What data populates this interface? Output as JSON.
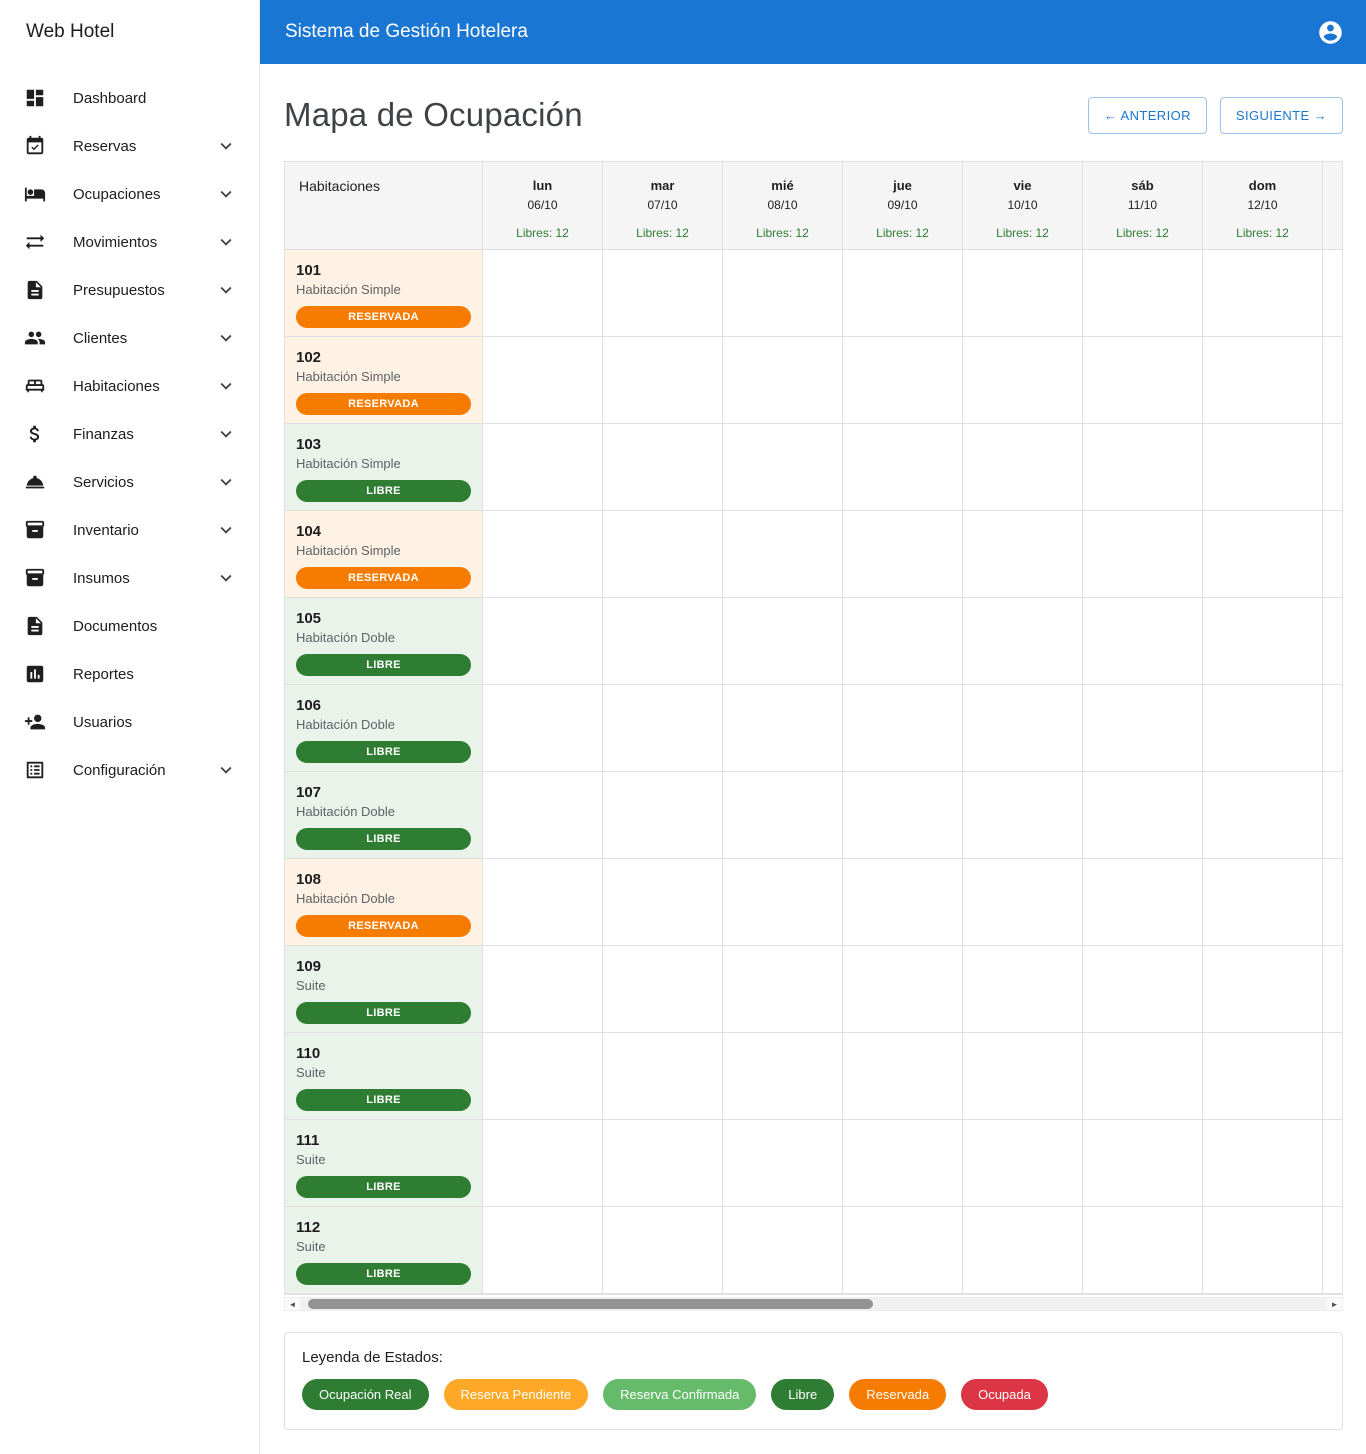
{
  "app": {
    "brand": "Web Hotel",
    "header_title": "Sistema de Gestión Hotelera",
    "accent_color": "#1976d2"
  },
  "sidebar": {
    "items": [
      {
        "label": "Dashboard",
        "icon": "dashboard",
        "expandable": false
      },
      {
        "label": "Reservas",
        "icon": "calendar-check",
        "expandable": true
      },
      {
        "label": "Ocupaciones",
        "icon": "bed",
        "expandable": true
      },
      {
        "label": "Movimientos",
        "icon": "swap-arrows",
        "expandable": true
      },
      {
        "label": "Presupuestos",
        "icon": "document",
        "expandable": true
      },
      {
        "label": "Clientes",
        "icon": "people",
        "expandable": true
      },
      {
        "label": "Habitaciones",
        "icon": "king-bed",
        "expandable": true
      },
      {
        "label": "Finanzas",
        "icon": "dollar",
        "expandable": true
      },
      {
        "label": "Servicios",
        "icon": "room-service",
        "expandable": true
      },
      {
        "label": "Inventario",
        "icon": "inventory",
        "expandable": true
      },
      {
        "label": "Insumos",
        "icon": "inventory",
        "expandable": true
      },
      {
        "label": "Documentos",
        "icon": "document",
        "expandable": false
      },
      {
        "label": "Reportes",
        "icon": "bar-chart",
        "expandable": false
      },
      {
        "label": "Usuarios",
        "icon": "person-add",
        "expandable": false
      },
      {
        "label": "Configuración",
        "icon": "list-alt",
        "expandable": true
      }
    ]
  },
  "main": {
    "title": "Mapa de Ocupación",
    "nav": {
      "prev": "← ANTERIOR",
      "next": "SIGUIENTE →"
    },
    "occupancy_table": {
      "rooms_header": "Habitaciones",
      "days": [
        {
          "weekday": "lun",
          "date": "06/10",
          "free": "Libres: 12"
        },
        {
          "weekday": "mar",
          "date": "07/10",
          "free": "Libres: 12"
        },
        {
          "weekday": "mié",
          "date": "08/10",
          "free": "Libres: 12"
        },
        {
          "weekday": "jue",
          "date": "09/10",
          "free": "Libres: 12"
        },
        {
          "weekday": "vie",
          "date": "10/10",
          "free": "Libres: 12"
        },
        {
          "weekday": "sáb",
          "date": "11/10",
          "free": "Libres: 12"
        },
        {
          "weekday": "dom",
          "date": "12/10",
          "free": "Libres: 12"
        }
      ],
      "rooms": [
        {
          "number": "101",
          "type": "Habitación Simple",
          "status": "RESERVADA"
        },
        {
          "number": "102",
          "type": "Habitación Simple",
          "status": "RESERVADA"
        },
        {
          "number": "103",
          "type": "Habitación Simple",
          "status": "LIBRE"
        },
        {
          "number": "104",
          "type": "Habitación Simple",
          "status": "RESERVADA"
        },
        {
          "number": "105",
          "type": "Habitación Doble",
          "status": "LIBRE"
        },
        {
          "number": "106",
          "type": "Habitación Doble",
          "status": "LIBRE"
        },
        {
          "number": "107",
          "type": "Habitación Doble",
          "status": "LIBRE"
        },
        {
          "number": "108",
          "type": "Habitación Doble",
          "status": "RESERVADA"
        },
        {
          "number": "109",
          "type": "Suite",
          "status": "LIBRE"
        },
        {
          "number": "110",
          "type": "Suite",
          "status": "LIBRE"
        },
        {
          "number": "111",
          "type": "Suite",
          "status": "LIBRE"
        },
        {
          "number": "112",
          "type": "Suite",
          "status": "LIBRE"
        }
      ]
    },
    "status_colors": {
      "RESERVADA": {
        "badge": "#f57c00",
        "row": "#fdf2e3"
      },
      "LIBRE": {
        "badge": "#2e7d32",
        "row": "#eaf3ea"
      }
    },
    "legend": {
      "title": "Leyenda de Estados:",
      "items": [
        {
          "label": "Ocupación Real",
          "color": "#2e7d32"
        },
        {
          "label": "Reserva Pendiente",
          "color": "#ffa726"
        },
        {
          "label": "Reserva Confirmada",
          "color": "#66bb6a"
        },
        {
          "label": "Libre",
          "color": "#2e7d32"
        },
        {
          "label": "Reservada",
          "color": "#f57c00"
        },
        {
          "label": "Ocupada",
          "color": "#dc3545"
        }
      ]
    }
  }
}
